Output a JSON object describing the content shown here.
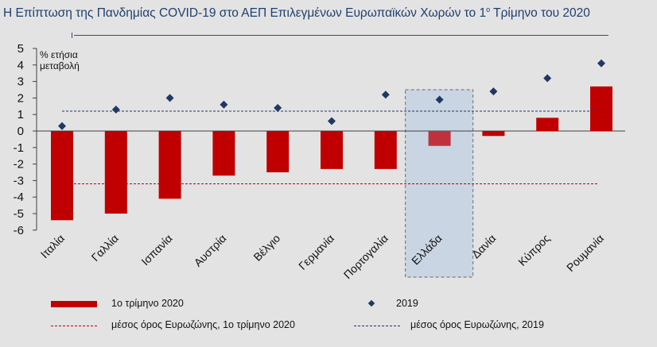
{
  "chart_data": {
    "type": "bar",
    "title_parts": [
      "Η Επίπτωση της Πανδημίας COVID-19 στο ΑΕΠ Επιλεγμένων Ευρωπαϊκών Χωρών το 1",
      "ο",
      " Τρίμηνο του 2020"
    ],
    "ylabel": [
      "% ετήσια",
      "μεταβολή"
    ],
    "ylim": [
      -6,
      5
    ],
    "yticks": [
      5,
      4,
      3,
      2,
      1,
      0,
      -1,
      -2,
      -3,
      -4,
      -5,
      -6
    ],
    "categories": [
      "Ιταλία",
      "Γαλλία",
      "Ισπανία",
      "Αυστρία",
      "Βέλγιο",
      "Γερμανία",
      "Πορτογαλία",
      "Ελλάδα",
      "Δανία",
      "Κύπρος",
      "Ρουμανία"
    ],
    "highlighted_category": "Ελλάδα",
    "series": [
      {
        "name": "1ο τρίμηνο 2020",
        "kind": "bar",
        "color": "#c00000",
        "values": [
          -5.4,
          -5.0,
          -4.1,
          -2.7,
          -2.5,
          -2.3,
          -2.3,
          -0.9,
          -0.3,
          0.8,
          2.7
        ]
      },
      {
        "name": "2019",
        "kind": "marker",
        "color": "#1f3864",
        "values": [
          0.3,
          1.3,
          2.0,
          1.6,
          1.4,
          0.6,
          2.2,
          1.9,
          2.4,
          3.2,
          4.1
        ]
      }
    ],
    "reference_lines": [
      {
        "name": "μέσος όρος Ευρωζώνης, 1ο τρίμηνο 2020",
        "value": -3.2,
        "color": "#c00000"
      },
      {
        "name": "μέσος όρος Ευρωζώνης, 2019",
        "value": 1.2,
        "color": "#1f3864"
      }
    ],
    "legend_position": "bottom",
    "grid": false
  }
}
